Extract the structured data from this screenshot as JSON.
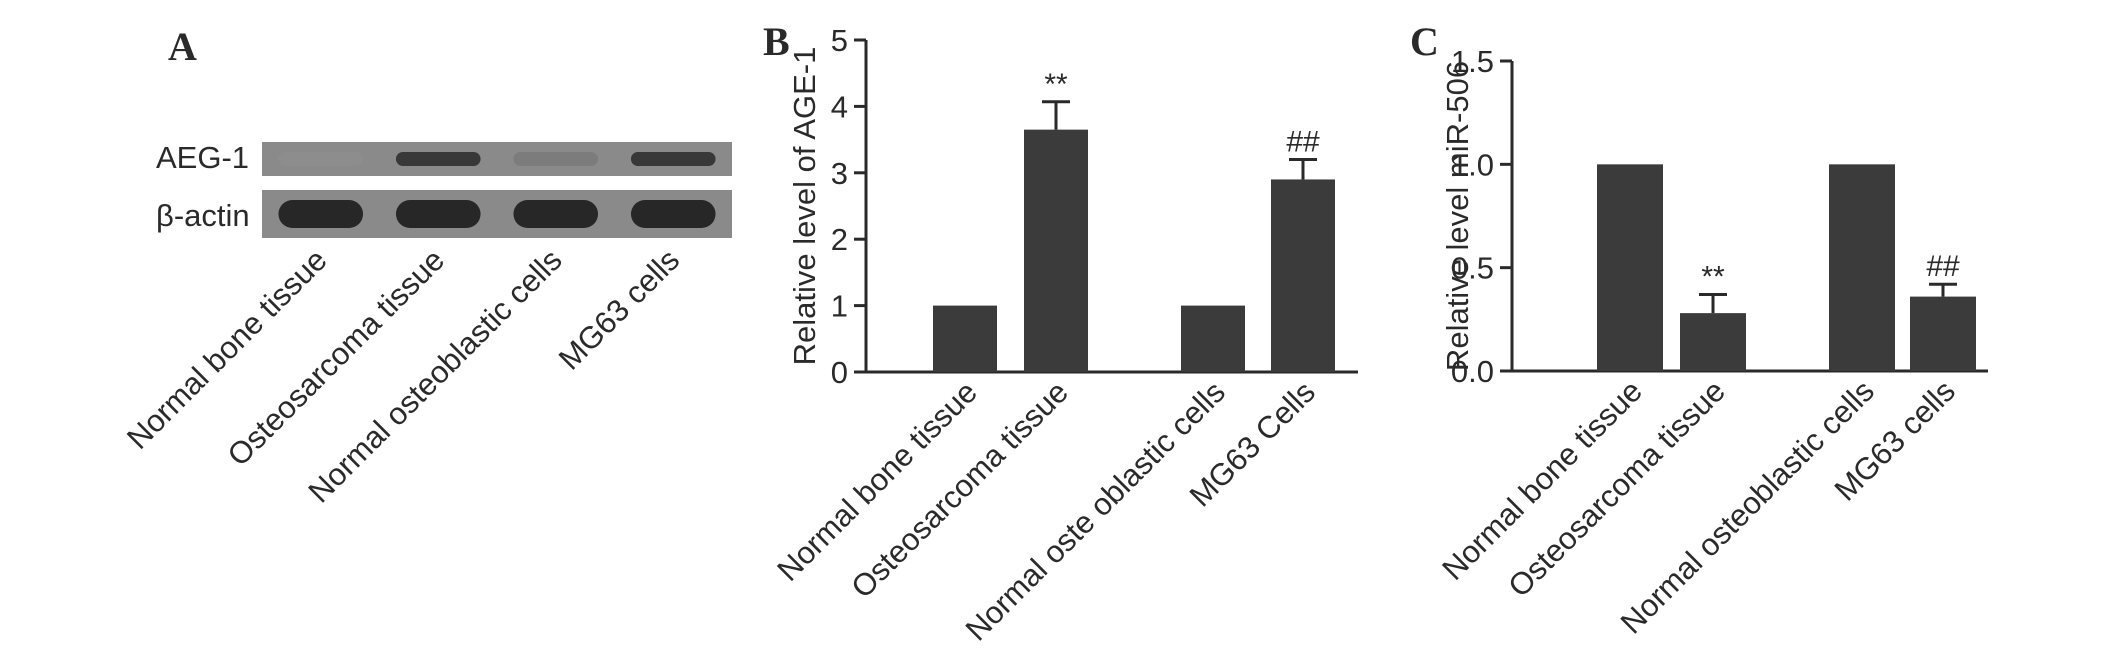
{
  "colors": {
    "bar": "#3b3b3b",
    "axis": "#2a2a2a",
    "gel_bg": "#8a8a8a",
    "band": "#2b2b2b"
  },
  "panels": {
    "A": {
      "letter": "A",
      "row_labels": [
        "AEG-1",
        "β-actin"
      ],
      "lanes": [
        "Normal bone tissue",
        "Osteosarcoma tissue",
        "Normal osteoblastic cells",
        "MG63 cells"
      ],
      "band_intensity": {
        "AEG-1": [
          0.35,
          0.85,
          0.45,
          0.85
        ],
        "β-actin": [
          0.95,
          0.95,
          0.95,
          0.95
        ]
      }
    },
    "B": {
      "letter": "B"
    },
    "C": {
      "letter": "C"
    }
  },
  "chart_data": [
    {
      "type": "bar",
      "title": "",
      "categories": [
        "Normal bone tissue",
        "Osteosarcoma tissue",
        "Normal oste oblastic cells",
        "MG63 Cells"
      ],
      "values": [
        1.0,
        3.65,
        1.0,
        2.9
      ],
      "errors": [
        0,
        0.42,
        0,
        0.3
      ],
      "annotations": [
        "",
        "**",
        "",
        "##"
      ],
      "xlabel": "",
      "ylabel": "Relative level of AGE-1",
      "ylim": [
        0,
        5
      ],
      "yticks": [
        "0",
        "1",
        "2",
        "3",
        "4",
        "5"
      ],
      "grid": false,
      "legend": "none"
    },
    {
      "type": "bar",
      "title": "",
      "categories": [
        "Normal bone tissue",
        "Osteosarcoma tissue",
        "Normal osteoblastic cells",
        "MG63 cells"
      ],
      "values": [
        1.0,
        0.28,
        1.0,
        0.36
      ],
      "errors": [
        0,
        0.09,
        0,
        0.06
      ],
      "annotations": [
        "",
        "**",
        "",
        "##"
      ],
      "xlabel": "",
      "ylabel": "Relative level miR-506",
      "ylim": [
        0,
        1.5
      ],
      "yticks": [
        "0.0",
        "0.5",
        "1.0",
        "1.5"
      ],
      "grid": false,
      "legend": "none"
    }
  ]
}
